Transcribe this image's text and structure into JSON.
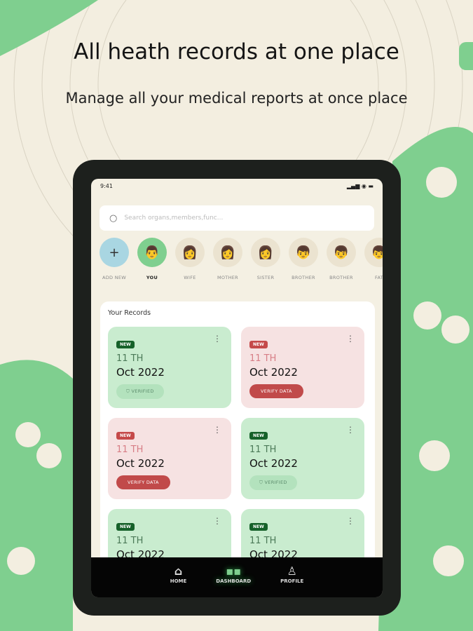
{
  "headline": "All heath records at one place",
  "subheadline": "Manage all your medical reports at once place",
  "colors": {
    "accent": "#7fcf8f",
    "background": "#f3eee0"
  },
  "status": {
    "time": "9:41"
  },
  "search": {
    "placeholder": "Search organs,members,func..."
  },
  "members": [
    {
      "label": "ADD NEW",
      "icon": "plus-icon"
    },
    {
      "label": "YOU",
      "icon": "man-avatar"
    },
    {
      "label": "WIFE",
      "icon": "woman-avatar"
    },
    {
      "label": "MOTHER",
      "icon": "woman-avatar"
    },
    {
      "label": "SISTER",
      "icon": "woman-avatar"
    },
    {
      "label": "BROTHER",
      "icon": "boy-avatar"
    },
    {
      "label": "BROTHER",
      "icon": "boy-avatar"
    },
    {
      "label": "FAT",
      "icon": "boy-avatar"
    }
  ],
  "records": {
    "title": "Your Records",
    "cards": [
      {
        "badge": "NEW",
        "day": "11 TH",
        "month": "Oct 2022",
        "status": "VERIFIED",
        "type": "green"
      },
      {
        "badge": "NEW",
        "day": "11 TH",
        "month": "Oct 2022",
        "status": "VERIFY DATA",
        "type": "red"
      },
      {
        "badge": "NEW",
        "day": "11 TH",
        "month": "Oct 2022",
        "status": "VERIFY DATA",
        "type": "red"
      },
      {
        "badge": "NEW",
        "day": "11 TH",
        "month": "Oct 2022",
        "status": "VERIFIED",
        "type": "green"
      },
      {
        "badge": "NEW",
        "day": "11 TH",
        "month": "Oct 2022",
        "status": "",
        "type": "green"
      },
      {
        "badge": "NEW",
        "day": "11 TH",
        "month": "Oct 2022",
        "status": "",
        "type": "green"
      }
    ]
  },
  "nav": [
    {
      "label": "HOME",
      "icon": "home-icon"
    },
    {
      "label": "DASHBOARD",
      "icon": "grid-icon",
      "active": true
    },
    {
      "label": "PROFILE",
      "icon": "user-icon"
    }
  ]
}
